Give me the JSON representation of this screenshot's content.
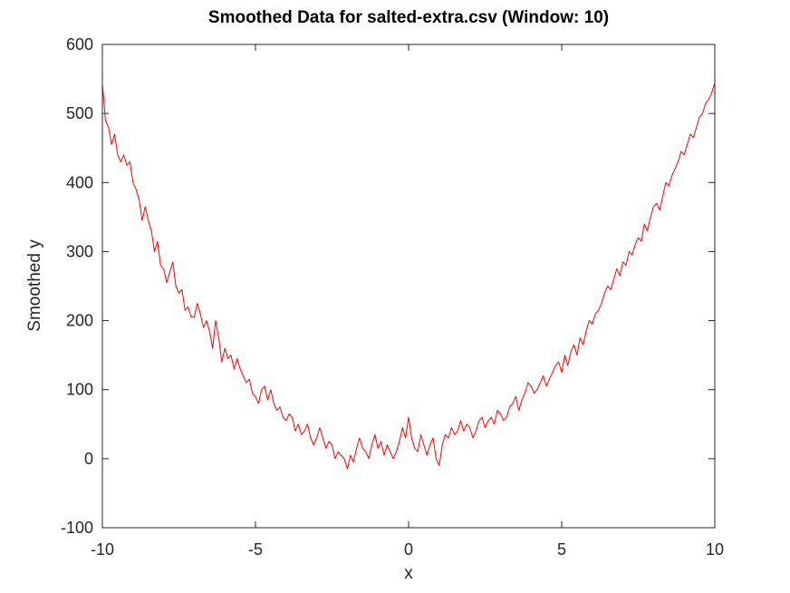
{
  "chart_data": {
    "type": "line",
    "title": "Smoothed Data for salted-extra.csv (Window: 10)",
    "xlabel": "x",
    "ylabel": "Smoothed y",
    "xlim": [
      -10,
      10
    ],
    "ylim": [
      -100,
      600
    ],
    "xticks": [
      -10,
      -5,
      0,
      5,
      10
    ],
    "yticks": [
      -100,
      0,
      100,
      200,
      300,
      400,
      500,
      600
    ],
    "grid": false,
    "legend": "none",
    "colors": {
      "line": "#ff0000",
      "axes": "#262626",
      "background": "#ffffff"
    },
    "series": [
      {
        "x": [
          -10,
          -9.9,
          -9.8,
          -9.7,
          -9.6,
          -9.5,
          -9.4,
          -9.3,
          -9.2,
          -9.1,
          -9.0,
          -8.9,
          -8.8,
          -8.7,
          -8.6,
          -8.5,
          -8.4,
          -8.3,
          -8.2,
          -8.1,
          -8.0,
          -7.9,
          -7.8,
          -7.7,
          -7.6,
          -7.5,
          -7.4,
          -7.3,
          -7.2,
          -7.1,
          -7.0,
          -6.9,
          -6.8,
          -6.7,
          -6.6,
          -6.5,
          -6.4,
          -6.3,
          -6.2,
          -6.1,
          -6.0,
          -5.9,
          -5.8,
          -5.7,
          -5.6,
          -5.5,
          -5.4,
          -5.3,
          -5.2,
          -5.1,
          -5.0,
          -4.9,
          -4.8,
          -4.7,
          -4.6,
          -4.5,
          -4.4,
          -4.3,
          -4.2,
          -4.1,
          -4.0,
          -3.9,
          -3.8,
          -3.7,
          -3.6,
          -3.5,
          -3.4,
          -3.3,
          -3.2,
          -3.1,
          -3.0,
          -2.9,
          -2.8,
          -2.7,
          -2.6,
          -2.5,
          -2.4,
          -2.3,
          -2.2,
          -2.1,
          -2.0,
          -1.9,
          -1.8,
          -1.7,
          -1.6,
          -1.5,
          -1.4,
          -1.3,
          -1.2,
          -1.1,
          -1.0,
          -0.9,
          -0.8,
          -0.7,
          -0.6,
          -0.5,
          -0.4,
          -0.3,
          -0.2,
          -0.1,
          0.0,
          0.1,
          0.2,
          0.3,
          0.4,
          0.5,
          0.6,
          0.7,
          0.8,
          0.9,
          1.0,
          1.1,
          1.2,
          1.3,
          1.4,
          1.5,
          1.6,
          1.7,
          1.8,
          1.9,
          2.0,
          2.1,
          2.2,
          2.3,
          2.4,
          2.5,
          2.6,
          2.7,
          2.8,
          2.9,
          3.0,
          3.1,
          3.2,
          3.3,
          3.4,
          3.5,
          3.6,
          3.7,
          3.8,
          3.9,
          4.0,
          4.1,
          4.2,
          4.3,
          4.4,
          4.5,
          4.6,
          4.7,
          4.8,
          4.9,
          5.0,
          5.1,
          5.2,
          5.3,
          5.4,
          5.5,
          5.6,
          5.7,
          5.8,
          5.9,
          6.0,
          6.1,
          6.2,
          6.3,
          6.4,
          6.5,
          6.6,
          6.7,
          6.8,
          6.9,
          7.0,
          7.1,
          7.2,
          7.3,
          7.4,
          7.5,
          7.6,
          7.7,
          7.8,
          7.9,
          8.0,
          8.1,
          8.2,
          8.3,
          8.4,
          8.5,
          8.6,
          8.7,
          8.8,
          8.9,
          9.0,
          9.1,
          9.2,
          9.3,
          9.4,
          9.5,
          9.6,
          9.7,
          9.8,
          9.9,
          10.0
        ],
        "y": [
          545,
          490,
          480,
          455,
          470,
          440,
          430,
          440,
          425,
          430,
          400,
          390,
          375,
          345,
          365,
          345,
          330,
          300,
          315,
          280,
          275,
          255,
          270,
          285,
          250,
          240,
          245,
          215,
          220,
          205,
          205,
          225,
          210,
          190,
          200,
          185,
          160,
          200,
          175,
          140,
          160,
          145,
          150,
          130,
          145,
          130,
          120,
          110,
          115,
          95,
          90,
          80,
          100,
          105,
          85,
          100,
          80,
          70,
          75,
          60,
          55,
          65,
          60,
          40,
          50,
          35,
          40,
          50,
          30,
          20,
          30,
          45,
          30,
          15,
          25,
          20,
          0,
          10,
          5,
          0,
          -15,
          5,
          -5,
          15,
          30,
          15,
          10,
          0,
          20,
          35,
          15,
          25,
          5,
          20,
          10,
          0,
          10,
          25,
          45,
          30,
          60,
          30,
          15,
          10,
          35,
          20,
          5,
          20,
          30,
          0,
          -10,
          20,
          35,
          30,
          45,
          35,
          40,
          55,
          40,
          50,
          45,
          30,
          40,
          55,
          60,
          45,
          55,
          60,
          50,
          70,
          65,
          55,
          60,
          75,
          80,
          90,
          70,
          85,
          95,
          110,
          105,
          95,
          100,
          110,
          120,
          105,
          115,
          125,
          135,
          140,
          125,
          150,
          135,
          155,
          165,
          150,
          175,
          165,
          185,
          200,
          195,
          210,
          215,
          225,
          240,
          250,
          245,
          260,
          275,
          265,
          285,
          280,
          300,
          295,
          310,
          320,
          315,
          340,
          330,
          350,
          365,
          370,
          360,
          380,
          400,
          395,
          410,
          420,
          430,
          445,
          440,
          455,
          470,
          465,
          480,
          495,
          500,
          515,
          520,
          530,
          545
        ]
      }
    ]
  }
}
